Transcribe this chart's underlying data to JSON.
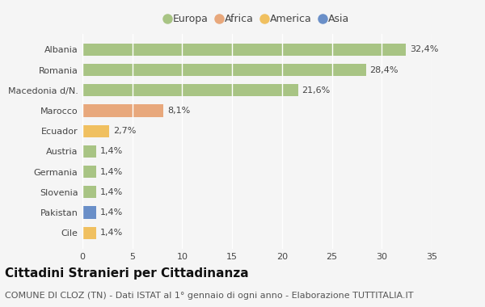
{
  "categories": [
    "Albania",
    "Romania",
    "Macedonia d/N.",
    "Marocco",
    "Ecuador",
    "Austria",
    "Germania",
    "Slovenia",
    "Pakistan",
    "Cile"
  ],
  "values": [
    32.4,
    28.4,
    21.6,
    8.1,
    2.7,
    1.4,
    1.4,
    1.4,
    1.4,
    1.4
  ],
  "labels": [
    "32,4%",
    "28,4%",
    "21,6%",
    "8,1%",
    "2,7%",
    "1,4%",
    "1,4%",
    "1,4%",
    "1,4%",
    "1,4%"
  ],
  "colors": [
    "#a8c484",
    "#a8c484",
    "#a8c484",
    "#e8a87c",
    "#f0c060",
    "#a8c484",
    "#a8c484",
    "#a8c484",
    "#6a8fc8",
    "#f0c060"
  ],
  "legend_labels": [
    "Europa",
    "Africa",
    "America",
    "Asia"
  ],
  "legend_colors": [
    "#a8c484",
    "#e8a87c",
    "#f0c060",
    "#6a8fc8"
  ],
  "xlim": [
    0,
    35
  ],
  "xticks": [
    0,
    5,
    10,
    15,
    20,
    25,
    30,
    35
  ],
  "title": "Cittadini Stranieri per Cittadinanza",
  "subtitle": "COMUNE DI CLOZ (TN) - Dati ISTAT al 1° gennaio di ogni anno - Elaborazione TUTTITALIA.IT",
  "background_color": "#f5f5f5",
  "bar_height": 0.6,
  "grid_color": "#ffffff",
  "title_fontsize": 11,
  "subtitle_fontsize": 8,
  "label_fontsize": 8,
  "tick_fontsize": 8,
  "legend_fontsize": 9
}
